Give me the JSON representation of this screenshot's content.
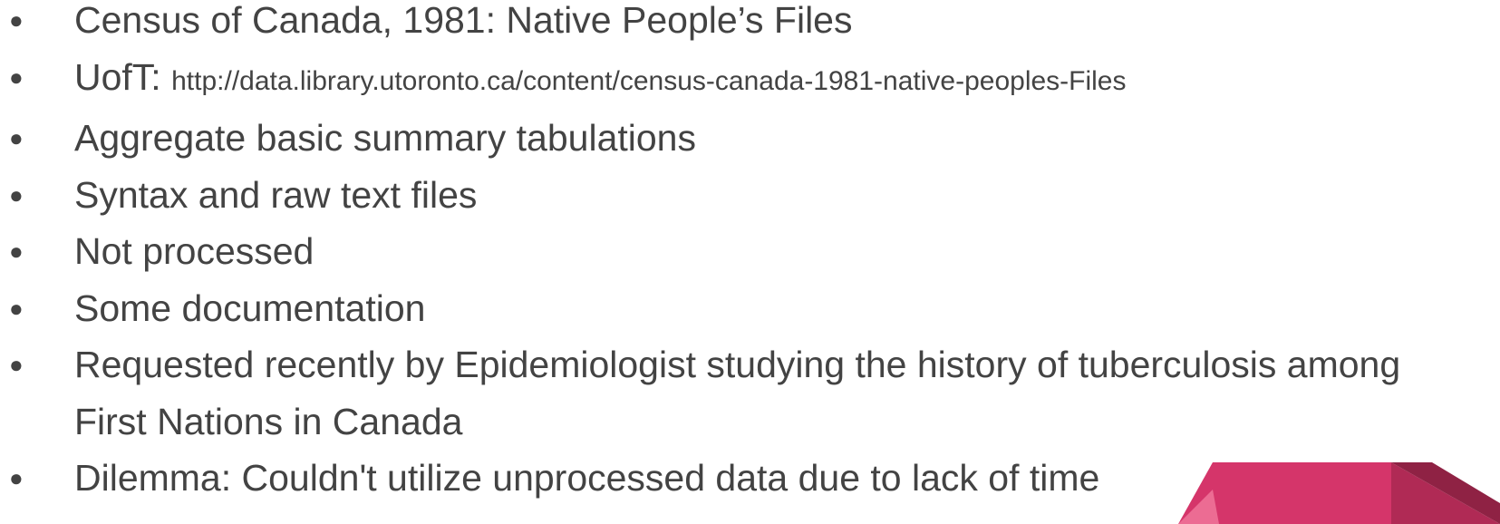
{
  "items": [
    {
      "text": "Census of Canada, 1981: Native People’s Files"
    },
    {
      "text": "UofT:",
      "link": "http://data.library.utoronto.ca/content/census-canada-1981-native-peoples-Files"
    },
    {
      "text": "Aggregate basic summary tabulations"
    },
    {
      "text": "Syntax and raw text files"
    },
    {
      "text": "Not processed"
    },
    {
      "text": "Some documentation"
    },
    {
      "text": "Requested recently by Epidemiologist studying the history of tuberculosis among First Nations in Canada"
    },
    {
      "text": "Dilemma: Couldn't utilize unprocessed data due to lack of time"
    }
  ]
}
